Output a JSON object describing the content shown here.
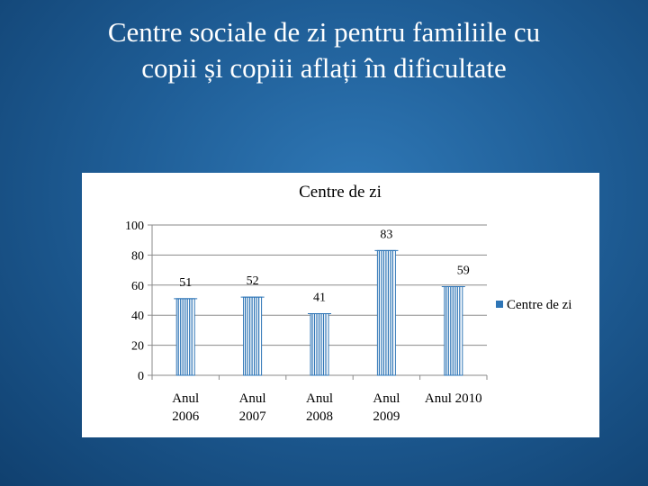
{
  "slide": {
    "title_line1": "Centre sociale de zi pentru familiile cu",
    "title_line2": "copii și copiii aflați în dificultate"
  },
  "chart_data": {
    "type": "bar",
    "title": "Centre de zi",
    "categories": [
      [
        "Anul",
        "2006"
      ],
      [
        "Anul",
        "2007"
      ],
      [
        "Anul",
        "2008"
      ],
      [
        "Anul",
        "2009"
      ],
      [
        "Anul 2010"
      ]
    ],
    "series": [
      {
        "name": "Centre de zi",
        "values": [
          51,
          52,
          41,
          83,
          59
        ],
        "color": "#2e75b6"
      }
    ],
    "data_labels": [
      "51",
      "52",
      "41",
      "83",
      "59"
    ],
    "y_ticks": [
      "0",
      "20",
      "40",
      "60",
      "80",
      "100"
    ],
    "ylim": [
      0,
      100
    ],
    "grid": true,
    "legend": "right",
    "xlabel": "",
    "ylabel": ""
  }
}
